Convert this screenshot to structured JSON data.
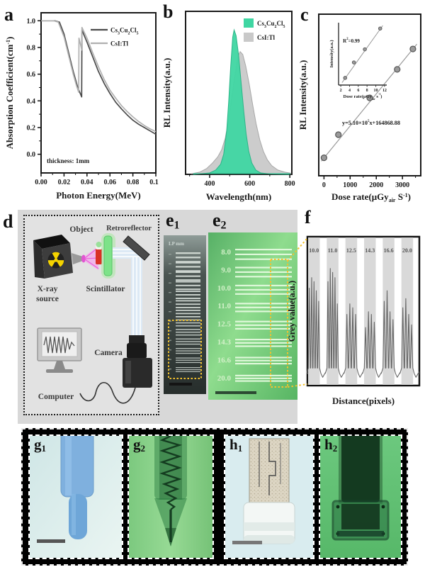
{
  "letters": {
    "a": "a",
    "b": "b",
    "c": "c",
    "d": "d",
    "f": "f",
    "e1": {
      "base": "e",
      "sub": "1"
    },
    "e2": {
      "base": "e",
      "sub": "2"
    },
    "g1": {
      "base": "g",
      "sub": "1"
    },
    "g2": {
      "base": "g",
      "sub": "2"
    },
    "h1": {
      "base": "h",
      "sub": "1"
    },
    "h2": {
      "base": "h",
      "sub": "2"
    }
  },
  "colors": {
    "green_fill": "#3fd6a2",
    "gray_fill": "#c9c9c9",
    "dark_line": "#4a4a4a",
    "light_line": "#b0b0b0",
    "accent_yellow": "#f2c12e",
    "scintillator_green": "#7de289",
    "beam_pink": "#f4a8ec",
    "beam_blue": "#dce9f5",
    "band_bg": "#d8d8d8"
  },
  "chart_data": [
    {
      "id": "a",
      "type": "line",
      "xlabel": "Photon Energy(MeV)",
      "ylabel_rich": [
        [
          "Absorption Coefficient(cm",
          0
        ],
        [
          "-1",
          2
        ],
        [
          ")",
          0
        ]
      ],
      "annotation": "thickness: 1mm",
      "xlim": [
        0,
        0.1
      ],
      "ylim": [
        -0.14,
        1.06
      ],
      "xticks": [
        [
          "0.00",
          0
        ],
        [
          "0.02",
          0.02
        ],
        [
          "0.04",
          0.04
        ],
        [
          "0.06",
          0.06
        ],
        [
          "0.08",
          0.08
        ],
        [
          "0.10",
          0.1
        ]
      ],
      "yticks": [
        [
          "0.0",
          0
        ],
        [
          "0.2",
          0.2
        ],
        [
          "0.4",
          0.4
        ],
        [
          "0.6",
          0.6
        ],
        [
          "0.8",
          0.8
        ],
        [
          "1.0",
          1.0
        ]
      ],
      "series": [
        {
          "name_rich": [
            [
              "Cs",
              0
            ],
            [
              "3",
              1
            ],
            [
              "Cu",
              0
            ],
            [
              "2",
              1
            ],
            [
              "Cl",
              0
            ],
            [
              "5",
              1
            ]
          ],
          "color": "#4a4a4a",
          "points": [
            [
              0,
              1.0
            ],
            [
              0.012,
              1.0
            ],
            [
              0.016,
              0.99
            ],
            [
              0.02,
              0.9
            ],
            [
              0.024,
              0.76
            ],
            [
              0.028,
              0.62
            ],
            [
              0.032,
              0.5
            ],
            [
              0.0354,
              0.43
            ],
            [
              0.0356,
              0.93
            ],
            [
              0.04,
              0.84
            ],
            [
              0.045,
              0.73
            ],
            [
              0.05,
              0.62
            ],
            [
              0.055,
              0.53
            ],
            [
              0.06,
              0.455
            ],
            [
              0.065,
              0.39
            ],
            [
              0.07,
              0.34
            ],
            [
              0.075,
              0.295
            ],
            [
              0.08,
              0.255
            ],
            [
              0.085,
              0.225
            ],
            [
              0.09,
              0.2
            ],
            [
              0.095,
              0.175
            ],
            [
              0.1,
              0.15
            ]
          ]
        },
        {
          "name_rich": [
            [
              "CsI:Tl",
              0
            ]
          ],
          "color": "#b0b0b0",
          "points": [
            [
              0,
              1.0
            ],
            [
              0.011,
              1.0
            ],
            [
              0.015,
              0.99
            ],
            [
              0.02,
              0.88
            ],
            [
              0.024,
              0.74
            ],
            [
              0.028,
              0.6
            ],
            [
              0.031,
              0.51
            ],
            [
              0.0328,
              0.465
            ],
            [
              0.033,
              0.87
            ],
            [
              0.035,
              0.8
            ],
            [
              0.0354,
              0.78
            ],
            [
              0.0356,
              0.95
            ],
            [
              0.04,
              0.87
            ],
            [
              0.045,
              0.76
            ],
            [
              0.05,
              0.655
            ],
            [
              0.055,
              0.56
            ],
            [
              0.06,
              0.48
            ],
            [
              0.065,
              0.42
            ],
            [
              0.07,
              0.365
            ],
            [
              0.075,
              0.32
            ],
            [
              0.08,
              0.28
            ],
            [
              0.085,
              0.245
            ],
            [
              0.09,
              0.215
            ],
            [
              0.095,
              0.19
            ],
            [
              0.1,
              0.17
            ]
          ]
        }
      ]
    },
    {
      "id": "b",
      "type": "area",
      "xlabel": "Wavelength(nm)",
      "ylabel": "RL Intensity(a.u.)",
      "xlim": [
        280,
        810
      ],
      "ylim": [
        0,
        1.05
      ],
      "xticks": [
        400,
        600,
        800
      ],
      "xminor": [
        300,
        500,
        700
      ],
      "series": [
        {
          "name_rich": [
            [
              "Cs",
              0
            ],
            [
              "3",
              1
            ],
            [
              "Cu",
              0
            ],
            [
              "2",
              1
            ],
            [
              "Cl",
              0
            ],
            [
              "5",
              1
            ]
          ],
          "color": "#3fd6a2",
          "edge": "#2bb588",
          "z": 1,
          "points": [
            [
              320,
              0
            ],
            [
              400,
              0.01
            ],
            [
              430,
              0.03
            ],
            [
              455,
              0.07
            ],
            [
              470,
              0.14
            ],
            [
              485,
              0.3
            ],
            [
              495,
              0.5
            ],
            [
              505,
              0.75
            ],
            [
              515,
              0.95
            ],
            [
              522,
              1.0
            ],
            [
              532,
              0.96
            ],
            [
              545,
              0.82
            ],
            [
              558,
              0.62
            ],
            [
              570,
              0.44
            ],
            [
              582,
              0.28
            ],
            [
              595,
              0.16
            ],
            [
              610,
              0.08
            ],
            [
              630,
              0.03
            ],
            [
              655,
              0.01
            ],
            [
              700,
              0.003
            ],
            [
              800,
              0
            ]
          ]
        },
        {
          "name_rich": [
            [
              "CsI:Tl",
              0
            ]
          ],
          "color": "#c9c9c9",
          "edge": "#a8a8a8",
          "z": 0,
          "points": [
            [
              310,
              0.004
            ],
            [
              350,
              0.015
            ],
            [
              385,
              0.04
            ],
            [
              415,
              0.08
            ],
            [
              440,
              0.12
            ],
            [
              460,
              0.17
            ],
            [
              478,
              0.25
            ],
            [
              495,
              0.38
            ],
            [
              512,
              0.55
            ],
            [
              528,
              0.7
            ],
            [
              542,
              0.82
            ],
            [
              552,
              0.85
            ],
            [
              565,
              0.83
            ],
            [
              580,
              0.75
            ],
            [
              598,
              0.62
            ],
            [
              615,
              0.48
            ],
            [
              632,
              0.35
            ],
            [
              650,
              0.24
            ],
            [
              668,
              0.16
            ],
            [
              688,
              0.1
            ],
            [
              710,
              0.06
            ],
            [
              740,
              0.03
            ],
            [
              775,
              0.015
            ],
            [
              805,
              0.008
            ]
          ]
        }
      ]
    },
    {
      "id": "c",
      "type": "scatter",
      "xlabel_rich": [
        [
          "Dose rate(μGy",
          0
        ],
        [
          "air",
          1
        ],
        [
          " S",
          0
        ],
        [
          "-1",
          2
        ],
        [
          ")",
          0
        ]
      ],
      "ylabel": "RL Intensity(a.u.)",
      "equation_rich": [
        [
          "y=5.10×10",
          0
        ],
        [
          "5",
          2
        ],
        [
          "x+164868.88",
          0
        ]
      ],
      "xlim": [
        -200,
        3700
      ],
      "xticks": [
        0,
        1000,
        2000,
        3000
      ],
      "points": [
        [
          0,
          0.08
        ],
        [
          550,
          0.25
        ],
        [
          1750,
          0.52
        ],
        [
          2800,
          0.73
        ],
        [
          3400,
          0.88
        ]
      ],
      "fit": [
        [
          -100,
          0.055
        ],
        [
          3550,
          0.915
        ]
      ],
      "inset": {
        "r2_rich": [
          [
            "R",
            0
          ],
          [
            "2",
            2
          ],
          [
            "=0.99",
            0
          ]
        ],
        "ylabel": "Intensity(a.u.)",
        "xlabel_rich": [
          [
            "Dose rate(μGy",
            0
          ],
          [
            "air",
            1
          ],
          [
            " s",
            0
          ],
          [
            "-1",
            2
          ],
          [
            ")",
            0
          ]
        ],
        "xlim": [
          1.5,
          12.5
        ],
        "xticks": [
          2,
          4,
          6,
          8,
          10,
          12
        ],
        "points": [
          [
            3,
            0.12
          ],
          [
            5,
            0.38
          ],
          [
            7.5,
            0.6
          ],
          [
            11,
            0.95
          ]
        ],
        "fit": [
          [
            2.3,
            0.04
          ],
          [
            11.6,
            1.0
          ]
        ]
      }
    },
    {
      "id": "f",
      "type": "profile",
      "xlabel": "Distance(pixels)",
      "ylabel": "Grey value(a.u.)",
      "groups": [
        {
          "label": "10.0",
          "peaks": [
            0.7,
            0.78,
            0.75,
            0.68,
            0.6
          ]
        },
        {
          "label": "11.0",
          "peaks": [
            0.75,
            0.85,
            0.82,
            0.78,
            0.58
          ]
        },
        {
          "label": "12.5",
          "peaks": [
            0.5,
            0.58,
            0.55,
            0.5
          ]
        },
        {
          "label": "14.3",
          "peaks": [
            0.4,
            0.52,
            0.5,
            0.44
          ]
        },
        {
          "label": "16.6",
          "peaks": [
            0.6,
            0.68,
            0.52,
            0.46
          ]
        },
        {
          "label": "20.0",
          "peaks": [
            0.55,
            0.62,
            0.5,
            0.42
          ]
        }
      ]
    }
  ],
  "d": {
    "labels": {
      "object": "Object",
      "retroreflector": "Retroreflector",
      "xray1": "X-ray",
      "xray2": "source",
      "scintillator": "Scintillator",
      "camera": "Camera",
      "computer": "Computer"
    }
  },
  "e1": {
    "header": "LP mm"
  },
  "e2": {
    "labels": [
      "8.0",
      "9.0",
      "10.0",
      "11.0",
      "12.5",
      "14.3",
      "16.6",
      "20.0"
    ]
  }
}
